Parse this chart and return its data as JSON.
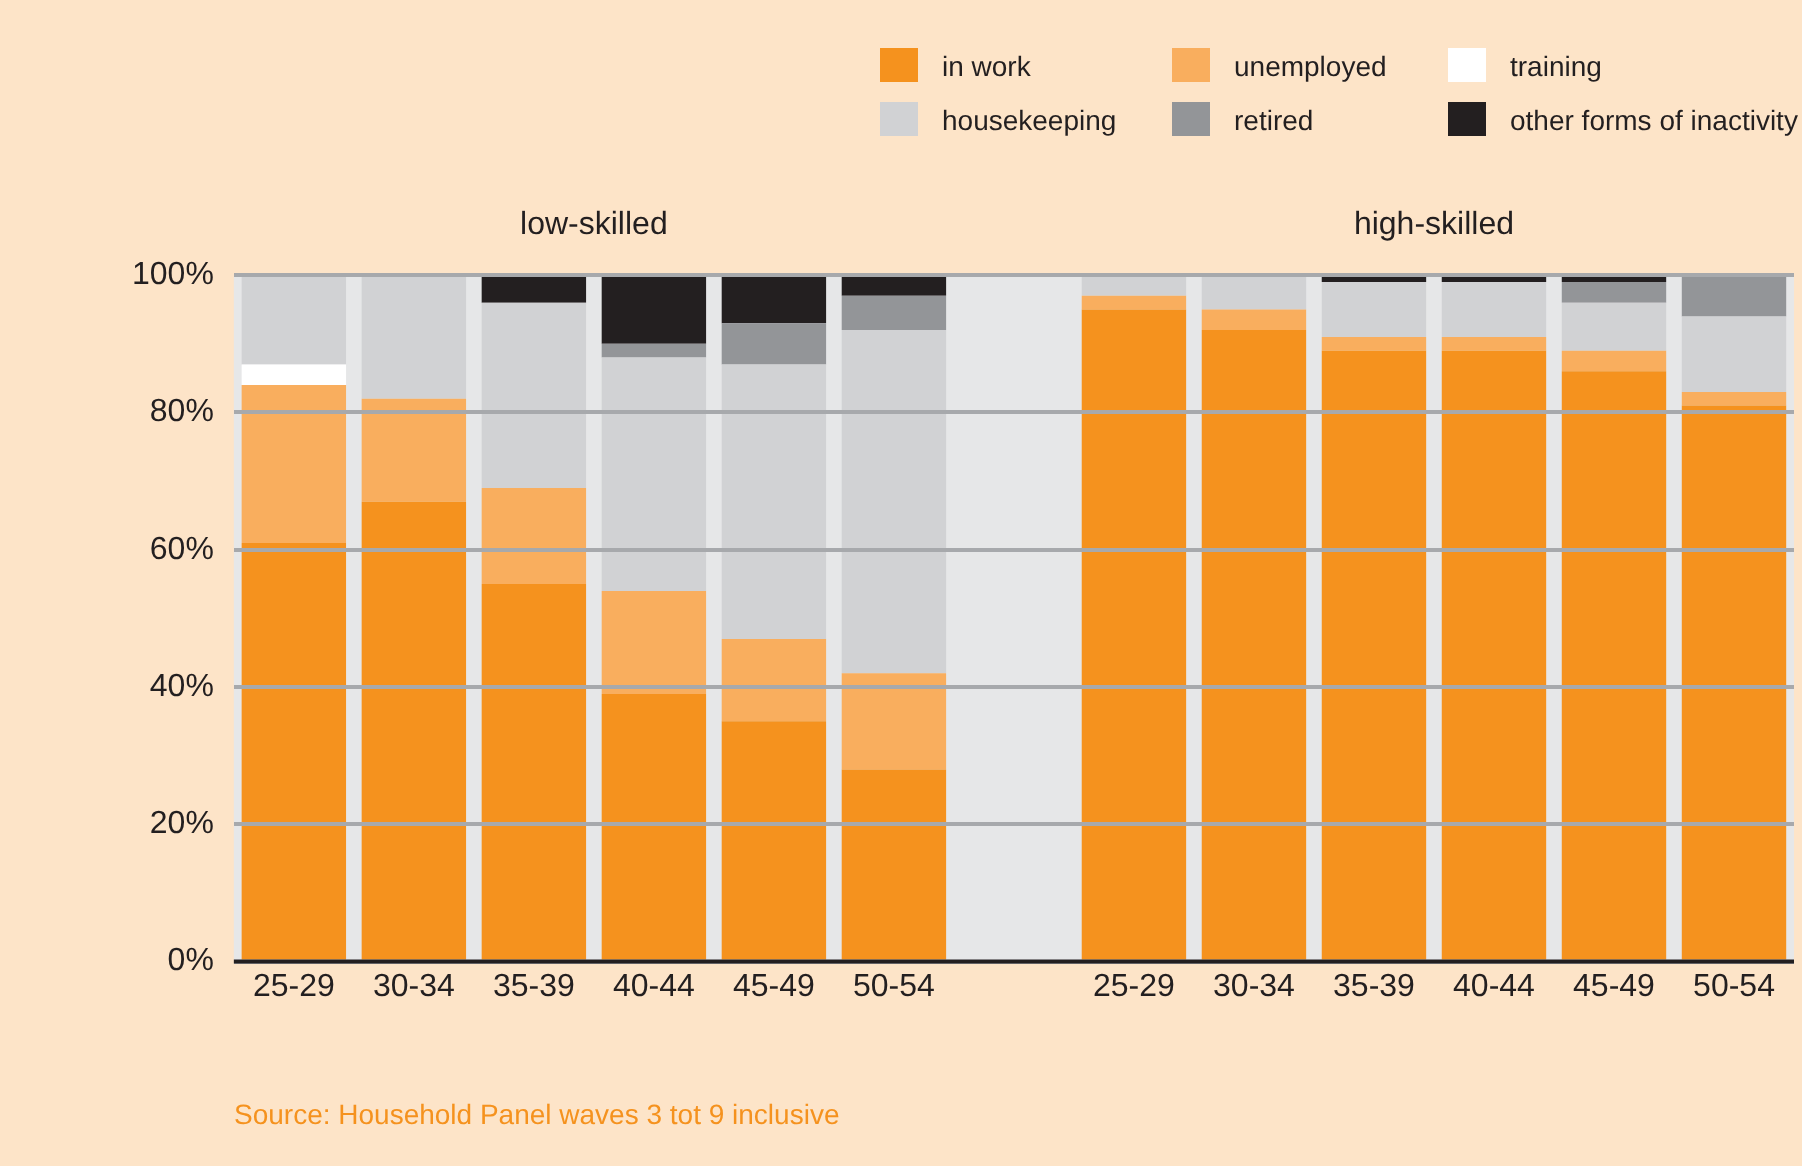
{
  "chart_data": {
    "type": "bar",
    "stacked": true,
    "categories": [
      "25-29",
      "30-34",
      "35-39",
      "40-44",
      "45-49",
      "50-54",
      null,
      "25-29",
      "30-34",
      "35-39",
      "40-44",
      "45-49",
      "50-54"
    ],
    "series": [
      {
        "name": "in work",
        "color": "#f5921e",
        "values": [
          61,
          67,
          55,
          39,
          35,
          28,
          null,
          95,
          92,
          89,
          89,
          86,
          81
        ]
      },
      {
        "name": "unemployed",
        "color": "#f9ae5e",
        "values": [
          23,
          15,
          14,
          15,
          12,
          14,
          null,
          2,
          3,
          2,
          2,
          3,
          2
        ]
      },
      {
        "name": "training",
        "color": "#ffffff",
        "values": [
          3,
          0,
          0,
          0,
          0,
          0,
          null,
          0,
          0,
          0,
          0,
          0,
          0
        ]
      },
      {
        "name": "housekeeping",
        "color": "#d1d2d4",
        "values": [
          13,
          18,
          27,
          34,
          40,
          50,
          null,
          3,
          5,
          8,
          8,
          7,
          11
        ]
      },
      {
        "name": "retired",
        "color": "#939598",
        "values": [
          0,
          0,
          0,
          2,
          6,
          5,
          null,
          0,
          0,
          0,
          0,
          3,
          6
        ]
      },
      {
        "name": "other forms of inactivity",
        "color": "#231f20",
        "values": [
          0,
          0,
          4,
          10,
          7,
          3,
          null,
          0,
          0,
          1,
          1,
          1,
          0
        ]
      }
    ],
    "ylim": [
      0,
      100
    ],
    "yticks": [
      {
        "value": 0,
        "label": "0%"
      },
      {
        "value": 20,
        "label": "20%"
      },
      {
        "value": 40,
        "label": "40%"
      },
      {
        "value": 60,
        "label": "60%"
      },
      {
        "value": 80,
        "label": "80%"
      },
      {
        "value": 100,
        "label": "100%"
      }
    ],
    "grid": "y",
    "legend": "top right",
    "annotations": [
      "low-skilled",
      "high-skilled",
      "Source: Household Panel waves 3 tot 9 inclusive"
    ]
  }
}
